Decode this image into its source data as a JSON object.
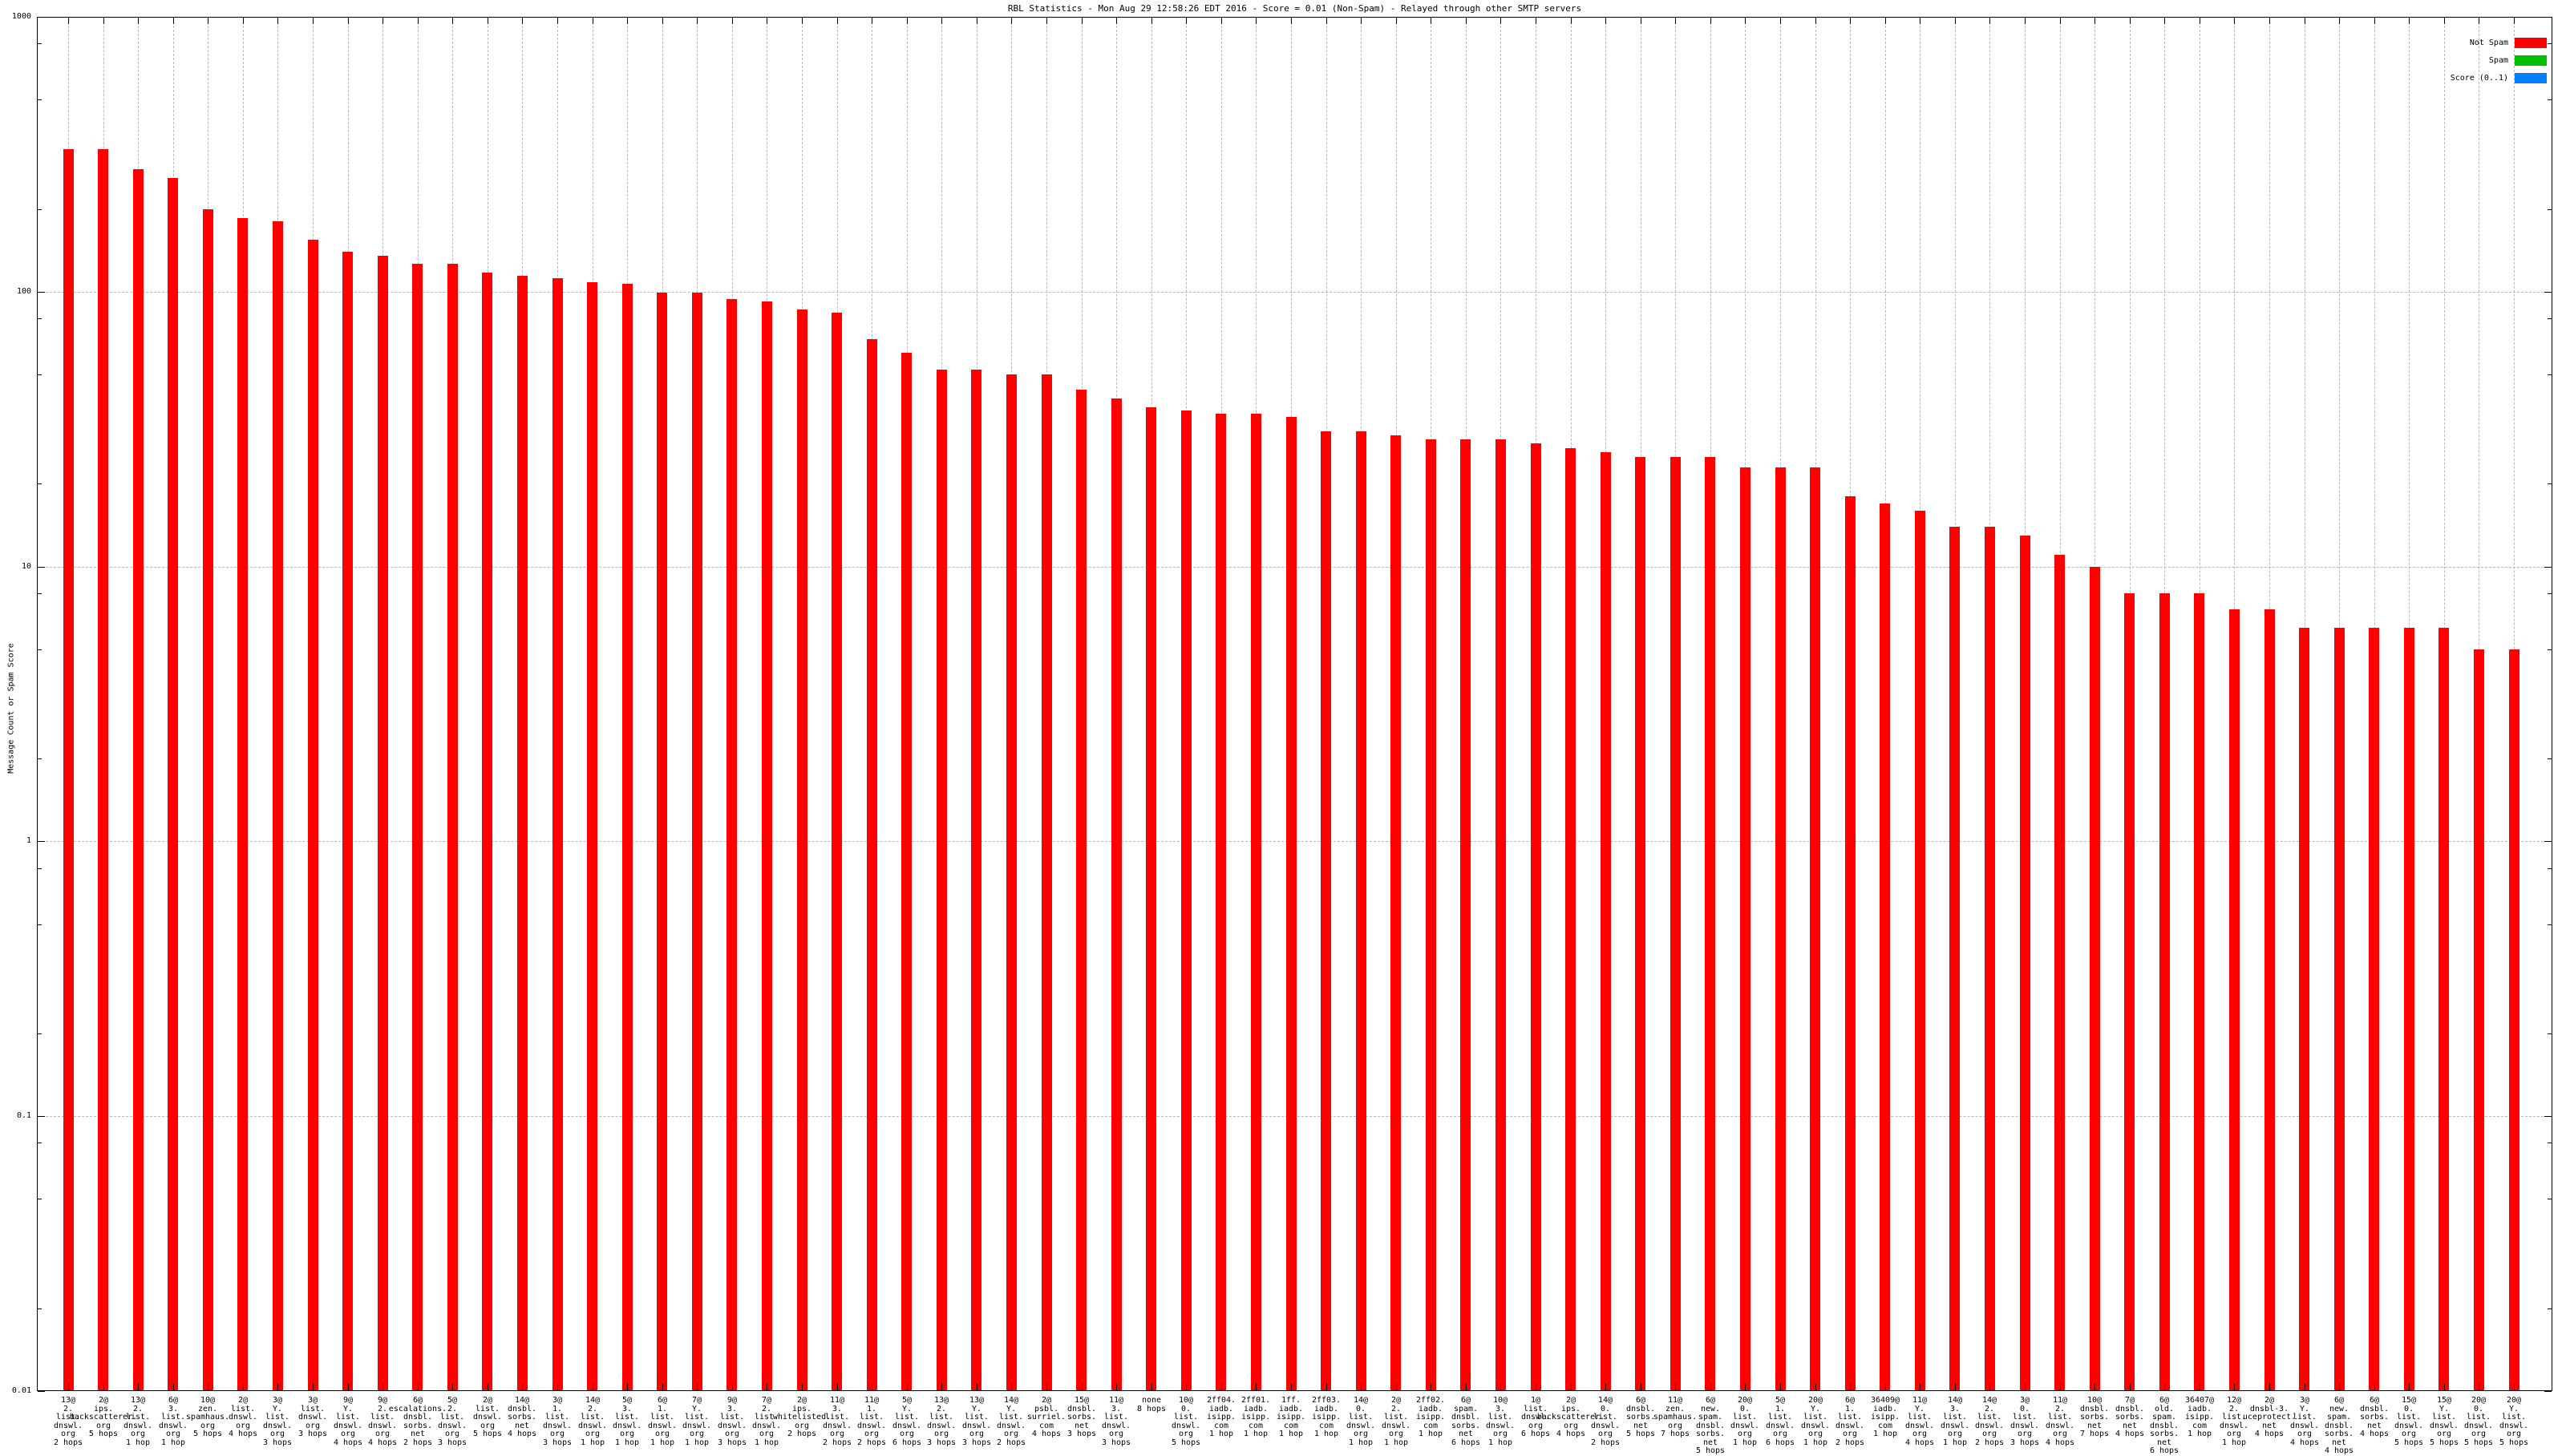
{
  "title": "RBL Statistics - Mon Aug 29 12:58:26 EDT 2016 - Score = 0.01 (Non-Spam) - Relayed through other SMTP servers",
  "y_axis": {
    "label": "Message Count or Spam Score",
    "tick_labels": [
      "1000",
      "100",
      "10",
      "1",
      "0.1",
      "0.01"
    ]
  },
  "legend": [
    {
      "label": "Not Spam",
      "color": "#ff0000"
    },
    {
      "label": "Spam",
      "color": "#00c000"
    },
    {
      "label": "Score (0..1)",
      "color": "#0080ff"
    }
  ],
  "chart_data": {
    "type": "bar",
    "title": "RBL Statistics - Mon Aug 29 12:58:26 EDT 2016 - Score = 0.01 (Non-Spam) - Relayed through other SMTP servers",
    "ylabel": "Message Count or Spam Score",
    "yscale": "log",
    "ylim": [
      0.01,
      1000
    ],
    "grid": true,
    "legend_position": "top-right",
    "series_name": "Not Spam",
    "bar_color": "#ff0000",
    "categories": [
      "13@\n2.\nlist.\ndnswl.\norg\n2 hops",
      "2@\nips.\nbackscatterer.\norg\n5 hops",
      "13@\n2.\nlist.\ndnswl.\norg\n1 hop",
      "6@\n3.\nlist.\ndnswl.\norg\n1 hop",
      "10@\nzen.\nspamhaus.\norg\n5 hops",
      "2@\nlist.\ndnswl.\norg\n4 hops",
      "3@\nY.\nlist.\ndnswl.\norg\n3 hops",
      "3@\nlist.\ndnswl.\norg\n3 hops",
      "9@\nY.\nlist.\ndnswl.\norg\n4 hops",
      "9@\n2.\nlist.\ndnswl.\norg\n4 hops",
      "6@\nescalations.\ndnsbl.\nsorbs.\nnet\n2 hops",
      "5@\n2.\nlist.\ndnswl.\norg\n3 hops",
      "2@\nlist.\ndnswl.\norg\n5 hops",
      "14@\ndnsbl.\nsorbs.\nnet\n4 hops",
      "3@\n1.\nlist.\ndnswl.\norg\n3 hops",
      "14@\n2.\nlist.\ndnswl.\norg\n1 hop",
      "5@\n3.\nlist.\ndnswl.\norg\n1 hop",
      "6@\n1.\nlist.\ndnswl.\norg\n1 hop",
      "7@\nY.\nlist.\ndnswl.\norg\n1 hop",
      "9@\n3.\nlist.\ndnswl.\norg\n3 hops",
      "7@\n2.\nlist.\ndnswl.\norg\n1 hop",
      "2@\nips.\nwhitelisted.\norg\n2 hops",
      "11@\n3.\nlist.\ndnswl.\norg\n2 hops",
      "11@\n1.\nlist.\ndnswl.\norg\n2 hops",
      "5@\nY.\nlist.\ndnswl.\norg\n6 hops",
      "13@\n2.\nlist.\ndnswl.\norg\n3 hops",
      "13@\nY.\nlist.\ndnswl.\norg\n3 hops",
      "14@\nY.\nlist.\ndnswl.\norg\n2 hops",
      "2@\npsbl.\nsurriel.\ncom\n4 hops",
      "15@\ndnsbl.\nsorbs.\nnet\n3 hops",
      "11@\n3.\nlist.\ndnswl.\norg\n3 hops",
      "none\n8 hops",
      "10@\n0.\nlist.\ndnswl.\norg\n5 hops",
      "2ff04.\niadb.\nisipp.\ncom\n1 hop",
      "2ff01.\niadb.\nisipp.\ncom\n1 hop",
      "1ff.\niadb.\nisipp.\ncom\n1 hop",
      "2ff03.\niadb.\nisipp.\ncom\n1 hop",
      "14@\n0.\nlist.\ndnswl.\norg\n1 hop",
      "2@\n2.\nlist.\ndnswl.\norg\n1 hop",
      "2ff02.\niadb.\nisipp.\ncom\n1 hop",
      "6@\nspam.\ndnsbl.\nsorbs.\nnet\n6 hops",
      "10@\n3.\nlist.\ndnswl.\norg\n1 hop",
      "1@\nlist.\ndnswl.\norg\n6 hops",
      "2@\nips.\nbackscatterer.\norg\n4 hops",
      "14@\n0.\nlist.\ndnswl.\norg\n2 hops",
      "6@\ndnsbl.\nsorbs.\nnet\n5 hops",
      "11@\nzen.\nspamhaus.\norg\n7 hops",
      "6@\nnew.\nspam.\ndnsbl.\nsorbs.\nnet\n5 hops",
      "20@\n0.\nlist.\ndnswl.\norg\n1 hop",
      "5@\n1.\nlist.\ndnswl.\norg\n6 hops",
      "20@\nY.\nlist.\ndnswl.\norg\n1 hop",
      "6@\n1.\nlist.\ndnswl.\norg\n2 hops",
      "36409@\niadb.\nisipp.\ncom\n1 hop",
      "11@\nY.\nlist.\ndnswl.\norg\n4 hops",
      "14@\n3.\nlist.\ndnswl.\norg\n1 hop",
      "14@\n2.\nlist.\ndnswl.\norg\n2 hops",
      "3@\n0.\nlist.\ndnswl.\norg\n3 hops",
      "11@\n2.\nlist.\ndnswl.\norg\n4 hops",
      "10@\ndnsbl.\nsorbs.\nnet\n7 hops",
      "7@\ndnsbl.\nsorbs.\nnet\n4 hops",
      "6@\nold.\nspam.\ndnsbl.\nsorbs.\nnet\n6 hops",
      "36407@\niadb.\nisipp.\ncom\n1 hop",
      "12@\n2.\nlist.\ndnswl.\norg\n1 hop",
      "2@\ndnsbl-3.\nuceprotect.\nnet\n4 hops",
      "3@\nY.\nlist.\ndnswl.\norg\n4 hops",
      "6@\nnew.\nspam.\ndnsbl.\nsorbs.\nnet\n4 hops",
      "6@\ndnsbl.\nsorbs.\nnet\n4 hops",
      "15@\n0.\nlist.\ndnswl.\norg\n5 hops",
      "15@\nY.\nlist.\ndnswl.\norg\n5 hops",
      "20@\n0.\nlist.\ndnswl.\norg\n5 hops",
      "20@\nY.\nlist.\ndnswl.\norg\n5 hops"
    ],
    "values": [
      330,
      330,
      280,
      260,
      200,
      185,
      180,
      155,
      140,
      135,
      126,
      126,
      117,
      114,
      112,
      108,
      107,
      99,
      99,
      94,
      92,
      86,
      84,
      67,
      60,
      52,
      52,
      50,
      50,
      44,
      41,
      38,
      37,
      36,
      36,
      35,
      31,
      31,
      30,
      29,
      29,
      29,
      28,
      27,
      26,
      25,
      25,
      25,
      23,
      23,
      23,
      18,
      17,
      16,
      14,
      14,
      13,
      11,
      10,
      8,
      8,
      8,
      7,
      7,
      6,
      6,
      6,
      6,
      6,
      5,
      5
    ]
  }
}
